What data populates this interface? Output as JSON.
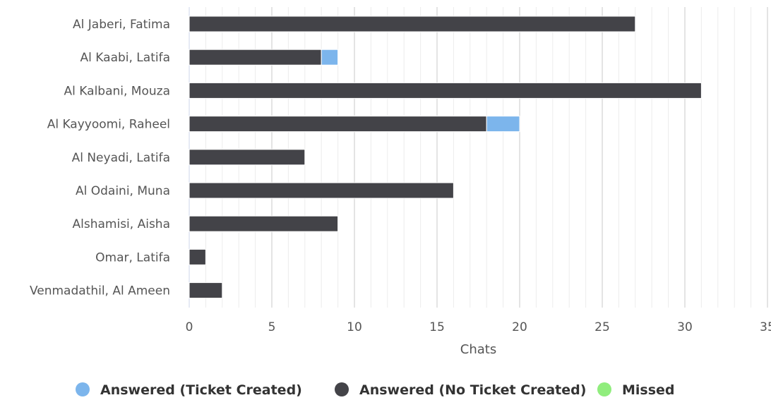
{
  "chart_data": {
    "type": "bar",
    "orientation": "horizontal",
    "stacked": true,
    "categories": [
      "Al Jaberi, Fatima",
      "Al Kaabi, Latifa",
      "Al Kalbani, Mouza",
      "Al Kayyoomi, Raheel",
      "Al Neyadi, Latifa",
      "Al Odaini, Muna",
      "Alshamisi, Aisha",
      "Omar, Latifa",
      "Venmadathil, Al Ameen"
    ],
    "series": [
      {
        "name": "Answered (No Ticket Created)",
        "color": "#434348",
        "values": [
          27,
          8,
          31,
          18,
          7,
          16,
          9,
          1,
          2
        ]
      },
      {
        "name": "Answered (Ticket Created)",
        "color": "#7cb5ec",
        "values": [
          0,
          1,
          0,
          2,
          0,
          0,
          0,
          0,
          0
        ]
      },
      {
        "name": "Missed",
        "color": "#90ed7d",
        "values": [
          0,
          0,
          0,
          0,
          0,
          0,
          0,
          0,
          0
        ]
      }
    ],
    "legend_order": [
      "Answered (Ticket Created)",
      "Answered (No Ticket Created)",
      "Missed"
    ],
    "xlabel": "Chats",
    "ylabel": "",
    "xlim": [
      0,
      35
    ],
    "xticks": [
      0,
      5,
      10,
      15,
      20,
      25,
      30,
      35
    ],
    "minor_grid_step": 1,
    "grid": true,
    "legend": "bottom-center"
  }
}
